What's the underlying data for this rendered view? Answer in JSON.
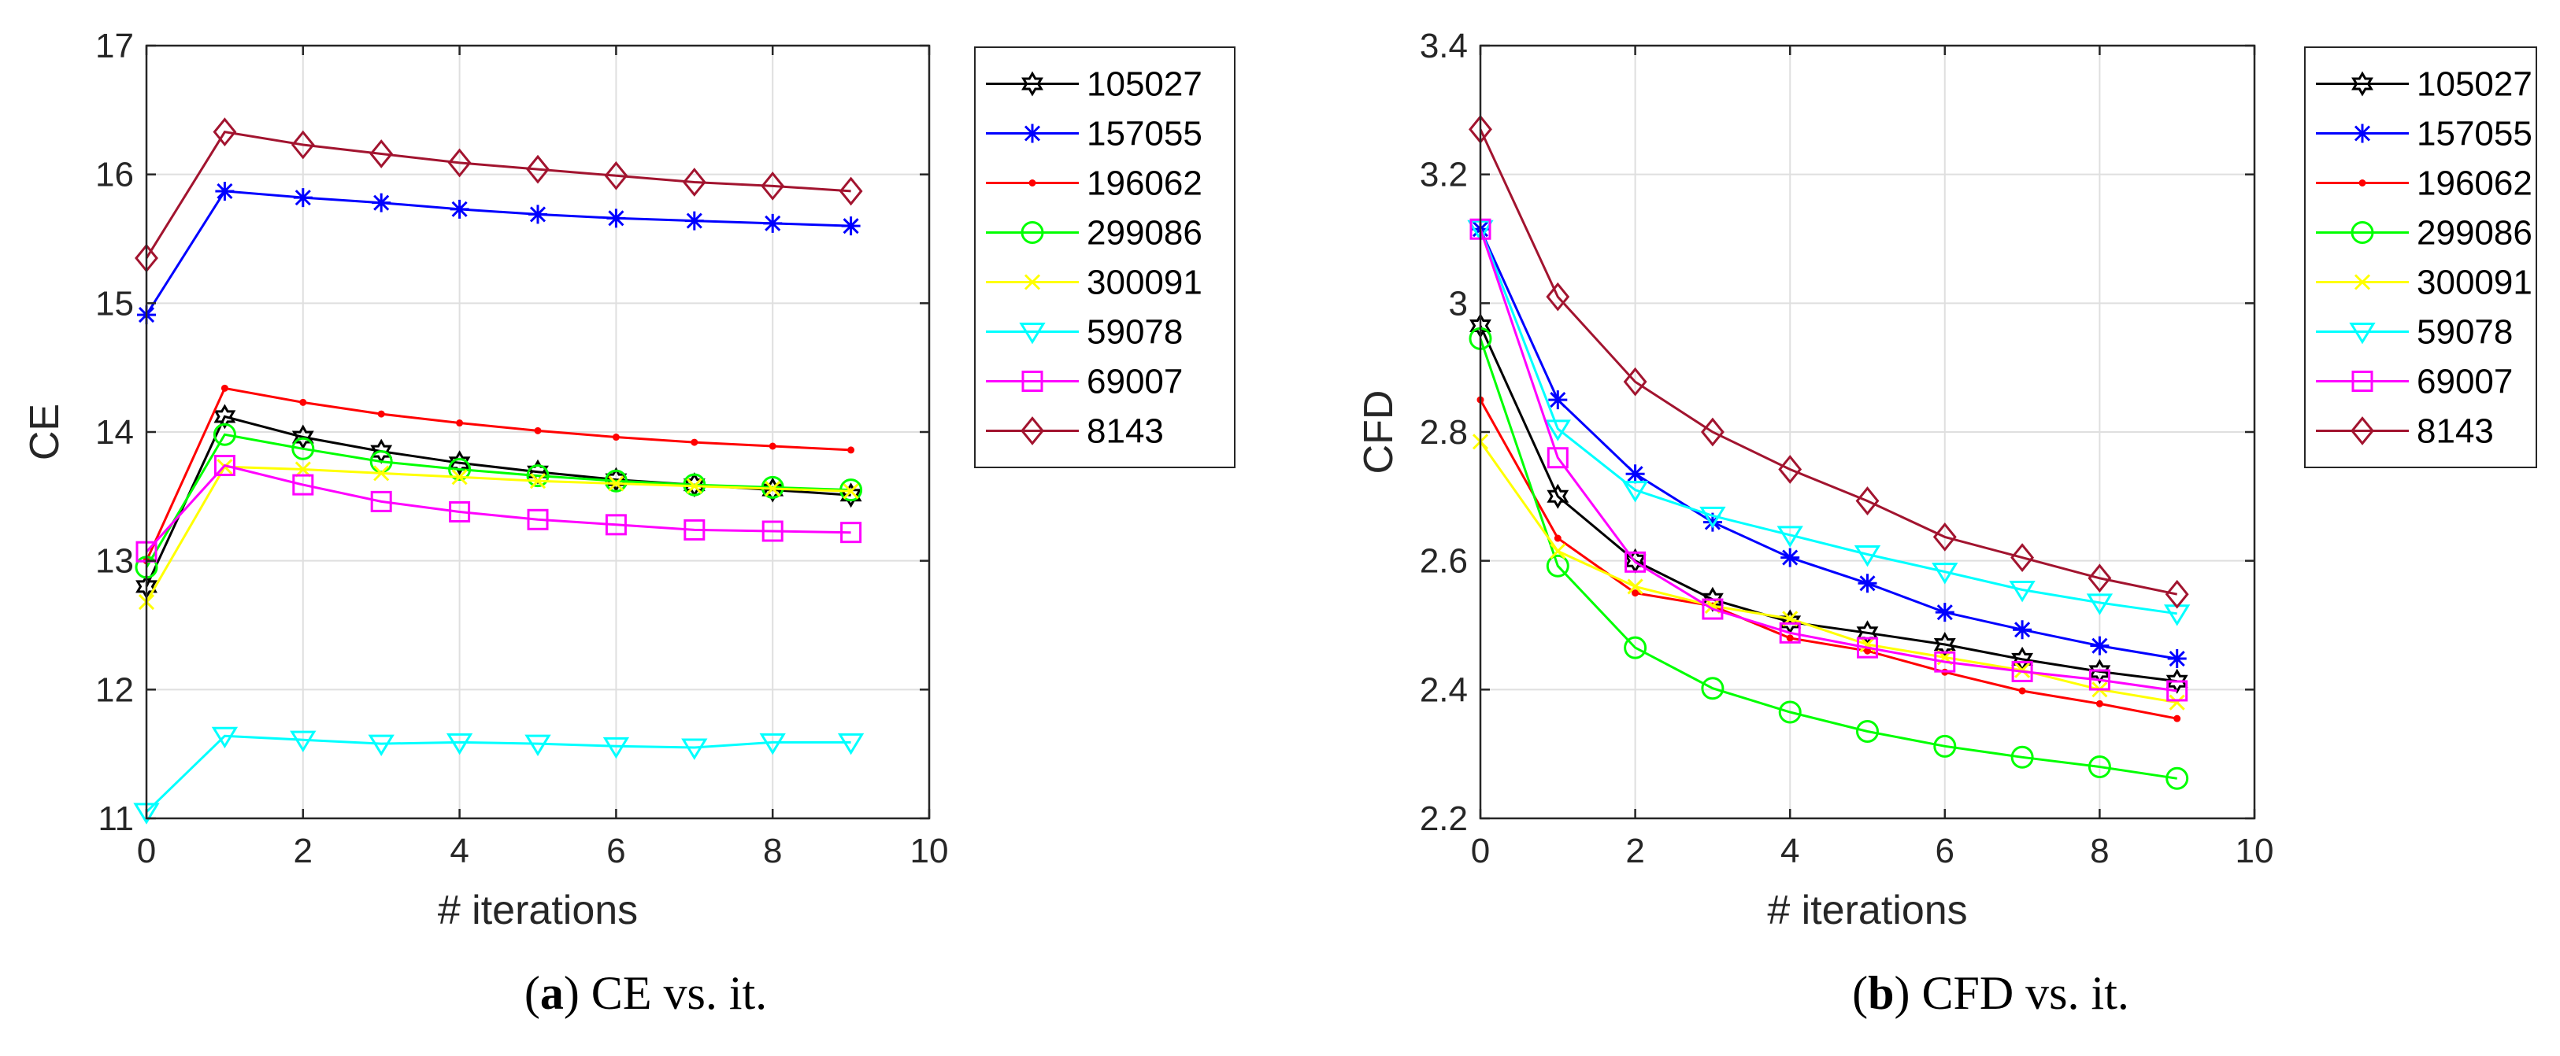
{
  "chart_data": [
    {
      "type": "line",
      "caption_letter": "a",
      "caption_text": "CE vs. it.",
      "xlabel": "# iterations",
      "ylabel": "CE",
      "xlim": [
        0,
        10
      ],
      "ylim": [
        11,
        17
      ],
      "xticks": [
        0,
        2,
        4,
        6,
        8,
        10
      ],
      "yticks": [
        11,
        12,
        13,
        14,
        15,
        16,
        17
      ],
      "grid": true,
      "legend_position": "outside-right",
      "x": [
        0,
        1,
        2,
        3,
        4,
        5,
        6,
        7,
        8,
        9
      ],
      "series": [
        {
          "name": "105027",
          "color": "#000000",
          "marker": "hexagram",
          "values": [
            12.8,
            14.12,
            13.96,
            13.85,
            13.76,
            13.69,
            13.63,
            13.59,
            13.55,
            13.51
          ]
        },
        {
          "name": "157055",
          "color": "#0000ff",
          "marker": "asterisk",
          "values": [
            14.91,
            15.87,
            15.82,
            15.78,
            15.73,
            15.69,
            15.66,
            15.64,
            15.62,
            15.6
          ]
        },
        {
          "name": "196062",
          "color": "#ff0000",
          "marker": "dot",
          "values": [
            13.0,
            14.34,
            14.23,
            14.14,
            14.07,
            14.01,
            13.96,
            13.92,
            13.89,
            13.86
          ]
        },
        {
          "name": "299086",
          "color": "#00ff00",
          "marker": "circle",
          "values": [
            12.95,
            13.98,
            13.87,
            13.77,
            13.71,
            13.66,
            13.62,
            13.59,
            13.57,
            13.55
          ]
        },
        {
          "name": "300091",
          "color": "#ffff00",
          "marker": "x",
          "values": [
            12.68,
            13.73,
            13.71,
            13.68,
            13.65,
            13.62,
            13.6,
            13.58,
            13.56,
            13.54
          ]
        },
        {
          "name": "59078",
          "color": "#00ffff",
          "marker": "triangle-down",
          "values": [
            11.05,
            11.64,
            11.61,
            11.58,
            11.59,
            11.58,
            11.56,
            11.55,
            11.59,
            11.59
          ]
        },
        {
          "name": "69007",
          "color": "#ff00ff",
          "marker": "square",
          "values": [
            13.07,
            13.74,
            13.59,
            13.46,
            13.38,
            13.32,
            13.28,
            13.24,
            13.23,
            13.22
          ]
        },
        {
          "name": "8143",
          "color": "#a2142f",
          "marker": "diamond",
          "values": [
            15.35,
            16.33,
            16.23,
            16.16,
            16.09,
            16.04,
            15.99,
            15.94,
            15.91,
            15.87
          ]
        }
      ]
    },
    {
      "type": "line",
      "caption_letter": "b",
      "caption_text": "CFD vs. it.",
      "xlabel": "# iterations",
      "ylabel": "CFD",
      "xlim": [
        0,
        10
      ],
      "ylim": [
        2.2,
        3.4
      ],
      "xticks": [
        0,
        2,
        4,
        6,
        8,
        10
      ],
      "yticks": [
        2.2,
        2.4,
        2.6,
        2.8,
        3,
        3.2,
        3.4
      ],
      "ytick_labels": [
        "2.2",
        "2.4",
        "2.6",
        "2.8",
        "3",
        "3.2",
        "3.4"
      ],
      "grid": true,
      "legend_position": "outside-right",
      "x": [
        0,
        1,
        2,
        3,
        4,
        5,
        6,
        7,
        8,
        9
      ],
      "series": [
        {
          "name": "105027",
          "color": "#000000",
          "marker": "hexagram",
          "values": [
            2.965,
            2.7,
            2.6,
            2.54,
            2.505,
            2.488,
            2.47,
            2.447,
            2.428,
            2.413
          ]
        },
        {
          "name": "157055",
          "color": "#0000ff",
          "marker": "asterisk",
          "values": [
            3.115,
            2.85,
            2.735,
            2.66,
            2.605,
            2.565,
            2.52,
            2.493,
            2.468,
            2.448
          ]
        },
        {
          "name": "196062",
          "color": "#ff0000",
          "marker": "dot",
          "values": [
            2.85,
            2.635,
            2.55,
            2.53,
            2.48,
            2.46,
            2.427,
            2.398,
            2.378,
            2.355
          ]
        },
        {
          "name": "299086",
          "color": "#00ff00",
          "marker": "circle",
          "values": [
            2.945,
            2.592,
            2.465,
            2.402,
            2.365,
            2.335,
            2.312,
            2.295,
            2.28,
            2.262
          ]
        },
        {
          "name": "300091",
          "color": "#ffff00",
          "marker": "x",
          "values": [
            2.785,
            2.615,
            2.56,
            2.53,
            2.51,
            2.47,
            2.45,
            2.43,
            2.4,
            2.38
          ]
        },
        {
          "name": "59078",
          "color": "#00ffff",
          "marker": "triangle-down",
          "values": [
            3.115,
            2.805,
            2.71,
            2.67,
            2.64,
            2.61,
            2.583,
            2.555,
            2.535,
            2.518
          ]
        },
        {
          "name": "69007",
          "color": "#ff00ff",
          "marker": "square",
          "values": [
            3.115,
            2.76,
            2.598,
            2.525,
            2.488,
            2.465,
            2.443,
            2.428,
            2.415,
            2.398
          ]
        },
        {
          "name": "8143",
          "color": "#a2142f",
          "marker": "diamond",
          "values": [
            3.27,
            3.01,
            2.878,
            2.8,
            2.742,
            2.693,
            2.637,
            2.605,
            2.573,
            2.548
          ]
        }
      ]
    }
  ]
}
